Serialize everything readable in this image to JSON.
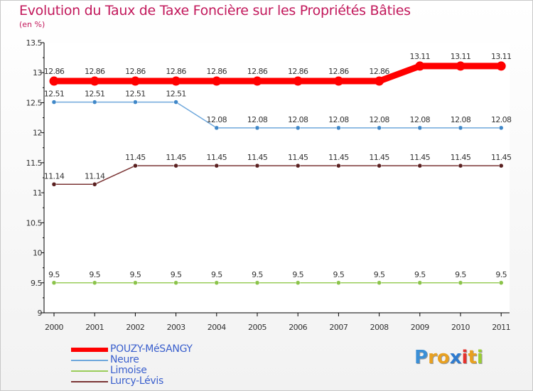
{
  "chart_data": {
    "type": "line",
    "title": "Evolution du Taux de Taxe Foncière sur les Propriétés Bâties",
    "subtitle": "(en %)",
    "categories": [
      "2000",
      "2001",
      "2002",
      "2003",
      "2004",
      "2005",
      "2006",
      "2007",
      "2008",
      "2009",
      "2010",
      "2011"
    ],
    "ylim": [
      9,
      13.5
    ],
    "yticks": [
      "9",
      "9.5",
      "10",
      "10.5",
      "11",
      "11.5",
      "12",
      "12.5",
      "13",
      "13.5"
    ],
    "series": [
      {
        "name": "POUZY-MéSANGY",
        "color": "#ff0000",
        "values": [
          12.86,
          12.86,
          12.86,
          12.86,
          12.86,
          12.86,
          12.86,
          12.86,
          12.86,
          13.11,
          13.11,
          13.11
        ],
        "labels": [
          "12.86",
          "12.86",
          "12.86",
          "12.86",
          "12.86",
          "12.86",
          "12.86",
          "12.86",
          "12.86",
          "13.11",
          "13.11",
          "13.11"
        ]
      },
      {
        "name": "Neure",
        "color": "#6fa8dc",
        "values": [
          12.51,
          12.51,
          12.51,
          12.51,
          12.08,
          12.08,
          12.08,
          12.08,
          12.08,
          12.08,
          12.08,
          12.08
        ],
        "labels": [
          "12.51",
          "12.51",
          "12.51",
          "12.51",
          "12.08",
          "12.08",
          "12.08",
          "12.08",
          "12.08",
          "12.08",
          "12.08",
          "12.08"
        ]
      },
      {
        "name": "Limoise",
        "color": "#9acd5a",
        "values": [
          9.5,
          9.5,
          9.5,
          9.5,
          9.5,
          9.5,
          9.5,
          9.5,
          9.5,
          9.5,
          9.5,
          9.5
        ],
        "labels": [
          "9.5",
          "9.5",
          "9.5",
          "9.5",
          "9.5",
          "9.5",
          "9.5",
          "9.5",
          "9.5",
          "9.5",
          "9.5",
          "9.5"
        ]
      },
      {
        "name": "Lurcy-Lévis",
        "color": "#7b3535",
        "values": [
          11.14,
          11.14,
          11.45,
          11.45,
          11.45,
          11.45,
          11.45,
          11.45,
          11.45,
          11.45,
          11.45,
          11.45
        ],
        "labels": [
          "11.14",
          "11.14",
          "11.45",
          "11.45",
          "11.45",
          "11.45",
          "11.45",
          "11.45",
          "11.45",
          "11.45",
          "11.45",
          "11.45"
        ]
      }
    ]
  },
  "logo": {
    "letters": [
      "P",
      "r",
      "o",
      "x",
      "i",
      "t",
      "i"
    ],
    "colors": [
      "#3b8fd6",
      "#e8a020",
      "#e8a020",
      "#2e7bcf",
      "#e5322d",
      "#e8a020",
      "#9acd32"
    ]
  }
}
